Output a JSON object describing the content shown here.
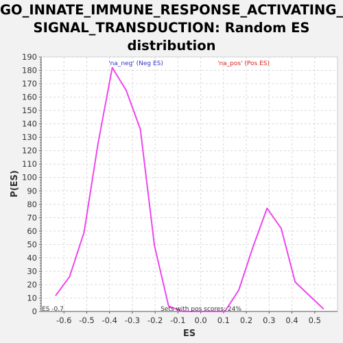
{
  "chart_data": {
    "type": "line",
    "title_lines": [
      "GO_INNATE_IMMUNE_RESPONSE_ACTIVATING_",
      "SIGNAL_TRANSDUCTION: Random ES",
      "distribution"
    ],
    "xlabel": "ES",
    "ylabel": "P(ES)",
    "xlim": [
      -0.7,
      0.6
    ],
    "ylim": [
      0,
      190
    ],
    "x_ticks": [
      -0.6,
      -0.5,
      -0.4,
      -0.3,
      -0.2,
      -0.1,
      0.0,
      0.1,
      0.2,
      0.3,
      0.4,
      0.5
    ],
    "x_tick_labels": [
      "-0.6",
      "-0.5",
      "-0.4",
      "-0.3",
      "-0.2",
      "-0.1",
      "0.0",
      "0.1",
      "0.2",
      "0.3",
      "0.4",
      "0.5"
    ],
    "y_ticks": [
      0,
      10,
      20,
      30,
      40,
      50,
      60,
      70,
      80,
      90,
      100,
      110,
      120,
      130,
      140,
      150,
      160,
      170,
      180,
      190
    ],
    "grid": true,
    "series": [
      {
        "color": "#ee44ee",
        "points": [
          [
            -0.636,
            12
          ],
          [
            -0.575,
            26
          ],
          [
            -0.512,
            59
          ],
          [
            -0.45,
            126
          ],
          [
            -0.388,
            182
          ],
          [
            -0.327,
            165
          ],
          [
            -0.265,
            136
          ],
          [
            -0.203,
            49
          ],
          [
            -0.141,
            4
          ],
          [
            -0.08,
            0
          ],
          [
            -0.018,
            0
          ],
          [
            0.044,
            0
          ],
          [
            0.106,
            0
          ],
          [
            0.167,
            16
          ],
          [
            0.229,
            48
          ],
          [
            0.291,
            77
          ],
          [
            0.353,
            62
          ],
          [
            0.414,
            22
          ],
          [
            0.476,
            12
          ],
          [
            0.538,
            2
          ]
        ]
      }
    ],
    "annotations": {
      "neg_label": "'na_neg' (Neg ES)",
      "pos_label": "'na_pos' (Pos ES)",
      "es_label": "ES -0.7",
      "pos_pct_label": "Sets with pos scores: 24%"
    },
    "colors": {
      "neg_label": "#3333cc",
      "pos_label": "#dd2222",
      "grid": "#d8d8d8",
      "plot_bg": "#ffffff",
      "page_bg": "#f2f2f2"
    }
  }
}
